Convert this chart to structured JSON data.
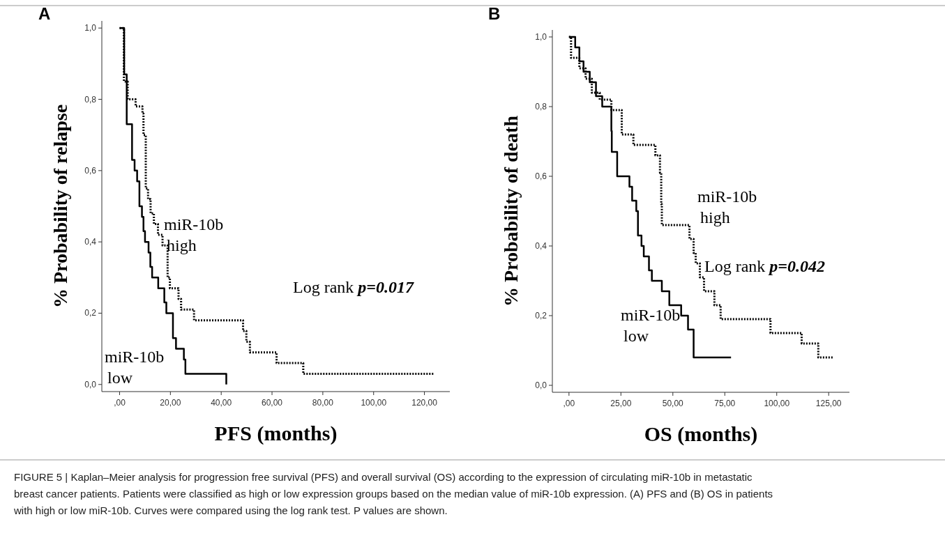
{
  "chart_data": [
    {
      "type": "step",
      "xlabel": "PFS (months)",
      "ylabel": "% Probability of relapse",
      "xlim": [
        -7,
        130
      ],
      "xticks": [
        {
          "value": 0,
          "label": ",00"
        },
        {
          "value": 20,
          "label": "20,00"
        },
        {
          "value": 40,
          "label": "40,00"
        },
        {
          "value": 60,
          "label": "60,00"
        },
        {
          "value": 80,
          "label": "80,00"
        },
        {
          "value": 100,
          "label": "100,00"
        },
        {
          "value": 120,
          "label": "120,00"
        }
      ],
      "ylim": [
        -0.02,
        1.02
      ],
      "yticks": [
        {
          "value": 0,
          "label": "0,0"
        },
        {
          "value": 0.2,
          "label": "0,2"
        },
        {
          "value": 0.4,
          "label": "0,4"
        },
        {
          "value": 0.6,
          "label": "0,6"
        },
        {
          "value": 0.8,
          "label": "0,8"
        },
        {
          "value": 1,
          "label": "1,0"
        }
      ],
      "grid": false,
      "legend": false,
      "marker": "none",
      "series": [
        {
          "name": "miR-10b low",
          "color": "#000000",
          "line_style": "solid",
          "x": [
            0,
            1.8,
            2.8,
            4.9,
            5.9,
            6.9,
            7.8,
            8.8,
            9.4,
            10,
            11.4,
            12.1,
            12.8,
            15.2,
            17.6,
            18.4,
            21,
            22.2,
            25.3,
            25.9,
            42
          ],
          "values": [
            1,
            0.87,
            0.73,
            0.63,
            0.6,
            0.57,
            0.5,
            0.47,
            0.43,
            0.4,
            0.37,
            0.33,
            0.3,
            0.27,
            0.23,
            0.2,
            0.13,
            0.1,
            0.07,
            0.03,
            0
          ]
        },
        {
          "name": "miR-10b high",
          "color": "#000000",
          "line_style": "dotted",
          "x": [
            0,
            1.7,
            3.2,
            6.3,
            9,
            9.4,
            10.3,
            11.2,
            12.2,
            13.5,
            15.1,
            16.9,
            18.9,
            19.8,
            23.2,
            24.2,
            29.3,
            48.6,
            49.9,
            51.3,
            61.8,
            72.3,
            124
          ],
          "values": [
            1,
            0.85,
            0.8,
            0.78,
            0.76,
            0.7,
            0.55,
            0.52,
            0.48,
            0.45,
            0.42,
            0.39,
            0.3,
            0.27,
            0.24,
            0.21,
            0.18,
            0.15,
            0.12,
            0.09,
            0.06,
            0.03,
            0.03
          ]
        }
      ],
      "annotations": [
        "A",
        "Log rank p=0.017",
        "FIGURE 5 | Kaplan–Meier analysis for progression free survival (PFS) and overall survival (OS) according to the expression of circulating miR-10b in metastatic breast cancer patients. Patients were classified as high or low expression groups based on the median value of miR-10b expression. (A) PFS and (B) OS in patients with high or low miR-10b. Curves were compared using the log rank test. P values are shown."
      ]
    },
    {
      "type": "step",
      "xlabel": "OS (months)",
      "ylabel": "% Probability of death",
      "xlim": [
        -8,
        135
      ],
      "xticks": [
        {
          "value": 0,
          "label": ",00"
        },
        {
          "value": 25,
          "label": "25,00"
        },
        {
          "value": 50,
          "label": "50,00"
        },
        {
          "value": 75,
          "label": "75,00"
        },
        {
          "value": 100,
          "label": "100,00"
        },
        {
          "value": 125,
          "label": "125,00"
        }
      ],
      "ylim": [
        -0.02,
        1.02
      ],
      "yticks": [
        {
          "value": 0,
          "label": "0,0"
        },
        {
          "value": 0.2,
          "label": "0,2"
        },
        {
          "value": 0.4,
          "label": "0,4"
        },
        {
          "value": 0.6,
          "label": "0,6"
        },
        {
          "value": 0.8,
          "label": "0,8"
        },
        {
          "value": 1,
          "label": "1,0"
        }
      ],
      "grid": false,
      "legend": false,
      "marker": "none",
      "series": [
        {
          "name": "miR-10b low",
          "color": "#000000",
          "line_style": "solid",
          "x": [
            0,
            3,
            5,
            7,
            10,
            13,
            16,
            20.4,
            20.6,
            23.2,
            29.1,
            30.4,
            32.4,
            33.2,
            34.9,
            36,
            38.5,
            39.9,
            44.7,
            48.3,
            54,
            57.3,
            60,
            78
          ],
          "values": [
            1,
            0.97,
            0.93,
            0.9,
            0.87,
            0.83,
            0.8,
            0.73,
            0.67,
            0.6,
            0.57,
            0.53,
            0.5,
            0.43,
            0.4,
            0.37,
            0.33,
            0.3,
            0.27,
            0.23,
            0.2,
            0.16,
            0.08,
            0.08
          ]
        },
        {
          "name": "miR-10b high",
          "color": "#000000",
          "line_style": "dotted",
          "x": [
            0,
            1,
            5,
            8,
            11,
            14.8,
            20.4,
            25.4,
            31,
            41.6,
            43.8,
            44.4,
            44.7,
            58,
            60,
            61,
            63,
            65,
            70,
            73,
            97,
            112,
            120,
            127
          ],
          "values": [
            1,
            0.94,
            0.91,
            0.88,
            0.84,
            0.82,
            0.79,
            0.72,
            0.69,
            0.66,
            0.61,
            0.52,
            0.46,
            0.42,
            0.38,
            0.35,
            0.31,
            0.27,
            0.23,
            0.19,
            0.15,
            0.12,
            0.08,
            0.08
          ]
        }
      ],
      "annotations": [
        "B",
        "Log rank p=0.042"
      ]
    }
  ]
}
